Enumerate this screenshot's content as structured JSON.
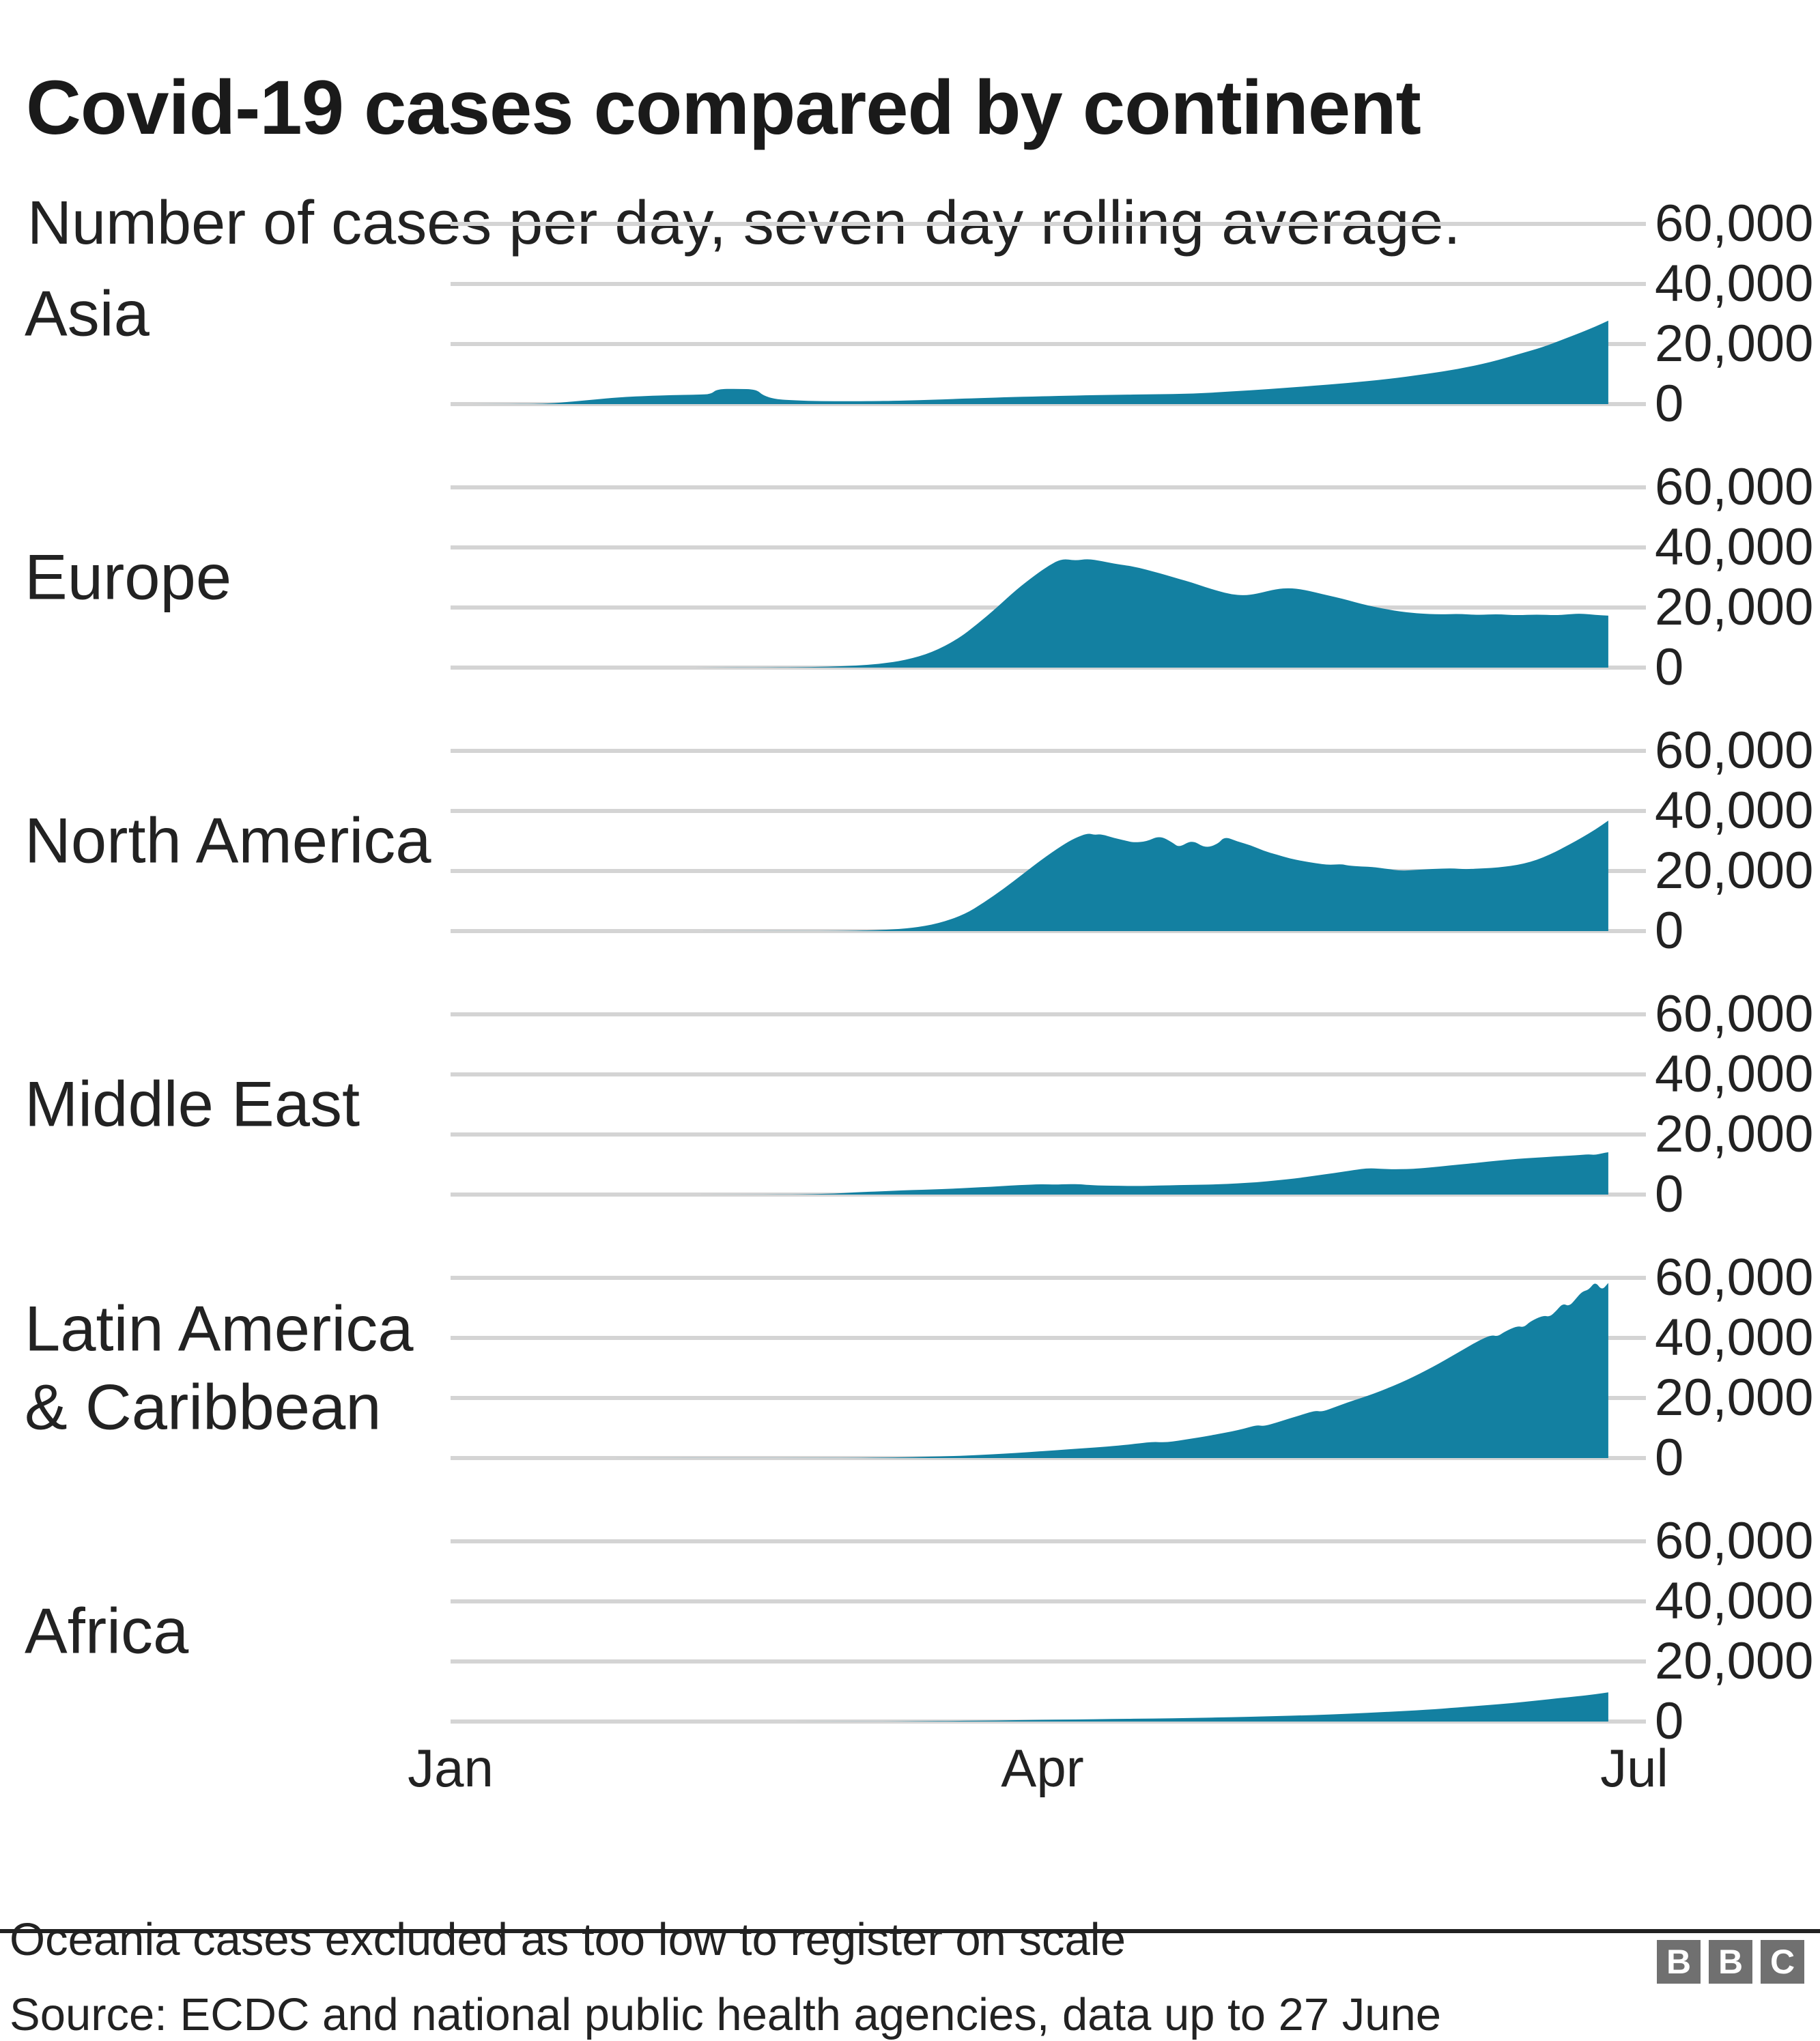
{
  "chart_data": {
    "type": "area",
    "title": "Covid-19 cases compared by continent",
    "subtitle": "Number of cases per day, seven day rolling average.",
    "layout": {
      "grid": "on",
      "panels_share_x": true,
      "y_labels_position": "right"
    },
    "colors": {
      "area": "#1380A1",
      "gridline": "#d4d4d4",
      "text": "#222222",
      "rule": "#222222",
      "logo_gray": "#707070"
    },
    "x_axis": {
      "start_day": 0,
      "end_day": 182,
      "data_end_day": 178,
      "ticks": [
        {
          "label": "Jan",
          "day": 0
        },
        {
          "label": "Apr",
          "day": 91
        },
        {
          "label": "Jul",
          "day": 182
        }
      ]
    },
    "y_axis": {
      "max": 60000,
      "ticks": [
        {
          "value": 0,
          "label": "0"
        },
        {
          "value": 20000,
          "label": "20,000"
        },
        {
          "value": 40000,
          "label": "40,000"
        },
        {
          "value": 60000,
          "label": "60,000"
        }
      ]
    },
    "series": [
      {
        "label": "Asia",
        "points": [
          [
            0,
            0
          ],
          [
            10,
            30
          ],
          [
            14,
            120
          ],
          [
            16,
            350
          ],
          [
            18,
            700
          ],
          [
            21,
            1300
          ],
          [
            24,
            1900
          ],
          [
            27,
            2400
          ],
          [
            30,
            2700
          ],
          [
            34,
            3000
          ],
          [
            38,
            3150
          ],
          [
            40,
            3300
          ],
          [
            41,
            5000
          ],
          [
            44,
            5100
          ],
          [
            47,
            4900
          ],
          [
            48,
            2900
          ],
          [
            50,
            1600
          ],
          [
            53,
            1200
          ],
          [
            57,
            1000
          ],
          [
            61,
            950
          ],
          [
            65,
            1000
          ],
          [
            68,
            1100
          ],
          [
            72,
            1300
          ],
          [
            76,
            1600
          ],
          [
            80,
            1900
          ],
          [
            85,
            2250
          ],
          [
            91,
            2600
          ],
          [
            96,
            2850
          ],
          [
            102,
            3100
          ],
          [
            108,
            3250
          ],
          [
            114,
            3450
          ],
          [
            120,
            4200
          ],
          [
            126,
            5000
          ],
          [
            132,
            6000
          ],
          [
            138,
            7000
          ],
          [
            144,
            8300
          ],
          [
            150,
            10000
          ],
          [
            155,
            11700
          ],
          [
            160,
            14000
          ],
          [
            164,
            16500
          ],
          [
            168,
            19000
          ],
          [
            171,
            21500
          ],
          [
            174,
            24000
          ],
          [
            176,
            25800
          ],
          [
            178,
            27800
          ]
        ]
      },
      {
        "label": "Europe",
        "points": [
          [
            0,
            0
          ],
          [
            30,
            0
          ],
          [
            40,
            20
          ],
          [
            48,
            60
          ],
          [
            54,
            150
          ],
          [
            58,
            300
          ],
          [
            62,
            600
          ],
          [
            66,
            1200
          ],
          [
            70,
            2500
          ],
          [
            74,
            5000
          ],
          [
            78,
            9500
          ],
          [
            81,
            14500
          ],
          [
            84,
            20000
          ],
          [
            87,
            26000
          ],
          [
            90,
            31000
          ],
          [
            92,
            34000
          ],
          [
            94,
            36300
          ],
          [
            96,
            35600
          ],
          [
            98,
            36200
          ],
          [
            100,
            35500
          ],
          [
            102,
            34600
          ],
          [
            104,
            34000
          ],
          [
            106,
            33200
          ],
          [
            108,
            32000
          ],
          [
            110,
            30800
          ],
          [
            112,
            29500
          ],
          [
            114,
            28300
          ],
          [
            116,
            26800
          ],
          [
            118,
            25500
          ],
          [
            120,
            24400
          ],
          [
            122,
            24000
          ],
          [
            124,
            24600
          ],
          [
            127,
            26200
          ],
          [
            129,
            26500
          ],
          [
            131,
            26000
          ],
          [
            133,
            25000
          ],
          [
            135,
            24000
          ],
          [
            137,
            23000
          ],
          [
            139,
            21800
          ],
          [
            141,
            20700
          ],
          [
            143,
            19800
          ],
          [
            145,
            19000
          ],
          [
            147,
            18400
          ],
          [
            149,
            18000
          ],
          [
            152,
            17700
          ],
          [
            155,
            17900
          ],
          [
            158,
            17500
          ],
          [
            161,
            17800
          ],
          [
            164,
            17400
          ],
          [
            167,
            17700
          ],
          [
            170,
            17400
          ],
          [
            172,
            17800
          ],
          [
            174,
            18000
          ],
          [
            176,
            17500
          ],
          [
            178,
            17300
          ]
        ]
      },
      {
        "label": "North America",
        "points": [
          [
            0,
            0
          ],
          [
            50,
            10
          ],
          [
            58,
            50
          ],
          [
            63,
            150
          ],
          [
            67,
            400
          ],
          [
            71,
            1000
          ],
          [
            75,
            2500
          ],
          [
            79,
            5500
          ],
          [
            82,
            9500
          ],
          [
            85,
            14000
          ],
          [
            88,
            19000
          ],
          [
            91,
            24000
          ],
          [
            94,
            28500
          ],
          [
            96,
            31000
          ],
          [
            98,
            32600
          ],
          [
            99,
            32000
          ],
          [
            100,
            32300
          ],
          [
            102,
            31000
          ],
          [
            104,
            30000
          ],
          [
            105,
            29500
          ],
          [
            107,
            29800
          ],
          [
            109,
            31800
          ],
          [
            111,
            29500
          ],
          [
            112,
            27800
          ],
          [
            114,
            30400
          ],
          [
            116,
            27600
          ],
          [
            118,
            29000
          ],
          [
            119,
            31500
          ],
          [
            121,
            29800
          ],
          [
            123,
            28600
          ],
          [
            125,
            26700
          ],
          [
            127,
            25500
          ],
          [
            129,
            24200
          ],
          [
            131,
            23300
          ],
          [
            133,
            22600
          ],
          [
            135,
            22000
          ],
          [
            137,
            22300
          ],
          [
            138,
            21800
          ],
          [
            140,
            21500
          ],
          [
            142,
            21300
          ],
          [
            144,
            20700
          ],
          [
            146,
            20100
          ],
          [
            148,
            20300
          ],
          [
            151,
            20700
          ],
          [
            154,
            20900
          ],
          [
            156,
            20600
          ],
          [
            158,
            20800
          ],
          [
            160,
            21000
          ],
          [
            162,
            21400
          ],
          [
            164,
            22000
          ],
          [
            166,
            23000
          ],
          [
            168,
            24500
          ],
          [
            170,
            26500
          ],
          [
            172,
            28800
          ],
          [
            174,
            31200
          ],
          [
            176,
            33800
          ],
          [
            178,
            36800
          ]
        ]
      },
      {
        "label": "Middle East",
        "points": [
          [
            0,
            0
          ],
          [
            48,
            10
          ],
          [
            53,
            60
          ],
          [
            56,
            150
          ],
          [
            59,
            350
          ],
          [
            62,
            700
          ],
          [
            65,
            1000
          ],
          [
            68,
            1250
          ],
          [
            71,
            1500
          ],
          [
            74,
            1700
          ],
          [
            77,
            1950
          ],
          [
            80,
            2250
          ],
          [
            83,
            2600
          ],
          [
            86,
            3000
          ],
          [
            89,
            3300
          ],
          [
            91,
            3450
          ],
          [
            93,
            3300
          ],
          [
            95,
            3500
          ],
          [
            97,
            3400
          ],
          [
            98,
            3200
          ],
          [
            100,
            3000
          ],
          [
            103,
            2900
          ],
          [
            106,
            2850
          ],
          [
            109,
            3000
          ],
          [
            112,
            3150
          ],
          [
            115,
            3250
          ],
          [
            118,
            3400
          ],
          [
            121,
            3700
          ],
          [
            124,
            4100
          ],
          [
            127,
            4700
          ],
          [
            130,
            5400
          ],
          [
            133,
            6300
          ],
          [
            136,
            7200
          ],
          [
            139,
            8200
          ],
          [
            141,
            8800
          ],
          [
            143,
            8600
          ],
          [
            145,
            8400
          ],
          [
            147,
            8500
          ],
          [
            149,
            8700
          ],
          [
            152,
            9300
          ],
          [
            155,
            10000
          ],
          [
            158,
            10600
          ],
          [
            161,
            11300
          ],
          [
            164,
            11900
          ],
          [
            167,
            12300
          ],
          [
            170,
            12700
          ],
          [
            173,
            13100
          ],
          [
            175,
            13400
          ],
          [
            176,
            13200
          ],
          [
            177,
            13700
          ],
          [
            178,
            14100
          ]
        ]
      },
      {
        "label": "Latin America & Caribbean",
        "label_lines": [
          "Latin America",
          "& Caribbean"
        ],
        "points": [
          [
            0,
            0
          ],
          [
            55,
            20
          ],
          [
            62,
            80
          ],
          [
            68,
            200
          ],
          [
            74,
            450
          ],
          [
            79,
            800
          ],
          [
            83,
            1200
          ],
          [
            87,
            1700
          ],
          [
            91,
            2300
          ],
          [
            95,
            2900
          ],
          [
            99,
            3500
          ],
          [
            103,
            4200
          ],
          [
            106,
            4900
          ],
          [
            108,
            5400
          ],
          [
            110,
            5200
          ],
          [
            112,
            5800
          ],
          [
            114,
            6500
          ],
          [
            116,
            7200
          ],
          [
            118,
            8000
          ],
          [
            120,
            8800
          ],
          [
            122,
            9800
          ],
          [
            124,
            11000
          ],
          [
            125,
            10600
          ],
          [
            127,
            11800
          ],
          [
            129,
            13200
          ],
          [
            131,
            14500
          ],
          [
            133,
            15800
          ],
          [
            134,
            15400
          ],
          [
            136,
            17000
          ],
          [
            138,
            18600
          ],
          [
            140,
            20000
          ],
          [
            142,
            21500
          ],
          [
            144,
            23200
          ],
          [
            146,
            25000
          ],
          [
            148,
            27000
          ],
          [
            150,
            29200
          ],
          [
            152,
            31500
          ],
          [
            154,
            34000
          ],
          [
            156,
            36500
          ],
          [
            158,
            39000
          ],
          [
            160,
            41000
          ],
          [
            161,
            40500
          ],
          [
            162,
            42000
          ],
          [
            164,
            44000
          ],
          [
            165,
            43500
          ],
          [
            166,
            45500
          ],
          [
            168,
            47500
          ],
          [
            169,
            47000
          ],
          [
            170,
            49000
          ],
          [
            171,
            51500
          ],
          [
            172,
            50500
          ],
          [
            173,
            53000
          ],
          [
            174,
            55500
          ],
          [
            175,
            56000
          ],
          [
            176,
            58800
          ],
          [
            177,
            55800
          ],
          [
            178,
            58300
          ]
        ]
      },
      {
        "label": "Africa",
        "points": [
          [
            0,
            0
          ],
          [
            60,
            10
          ],
          [
            66,
            40
          ],
          [
            72,
            100
          ],
          [
            78,
            200
          ],
          [
            84,
            350
          ],
          [
            90,
            550
          ],
          [
            96,
            700
          ],
          [
            102,
            850
          ],
          [
            108,
            1000
          ],
          [
            114,
            1200
          ],
          [
            120,
            1450
          ],
          [
            126,
            1750
          ],
          [
            132,
            2100
          ],
          [
            138,
            2600
          ],
          [
            144,
            3200
          ],
          [
            150,
            3900
          ],
          [
            155,
            4700
          ],
          [
            159,
            5400
          ],
          [
            163,
            6100
          ],
          [
            167,
            7000
          ],
          [
            171,
            7900
          ],
          [
            174,
            8600
          ],
          [
            176,
            9100
          ],
          [
            178,
            9700
          ]
        ]
      }
    ]
  },
  "footer": {
    "note": "Oceania cases excluded as too low to register on scale",
    "source": "Source: ECDC and national public health agencies, data up to 27 June",
    "logo_letters": [
      "B",
      "B",
      "C"
    ]
  }
}
